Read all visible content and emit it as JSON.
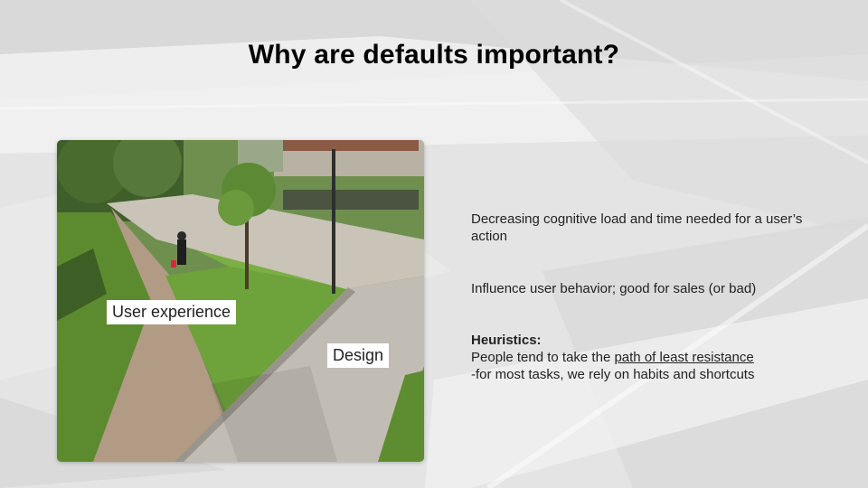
{
  "slide": {
    "title": "Why are defaults important?"
  },
  "photo": {
    "alt": "Park path photo",
    "label_user_experience": "User experience",
    "label_design": "Design"
  },
  "points": {
    "p1": "Decreasing cognitive load and time needed for a user’s action",
    "p2": "Influence user behavior; good for sales (or bad)",
    "heuristics_heading": "Heuristics:",
    "heuristics_line1_prefix": "People tend to take the ",
    "heuristics_line1_link": "path of least resistance",
    "heuristics_line2": "-for most tasks, we rely on habits and shortcuts"
  }
}
